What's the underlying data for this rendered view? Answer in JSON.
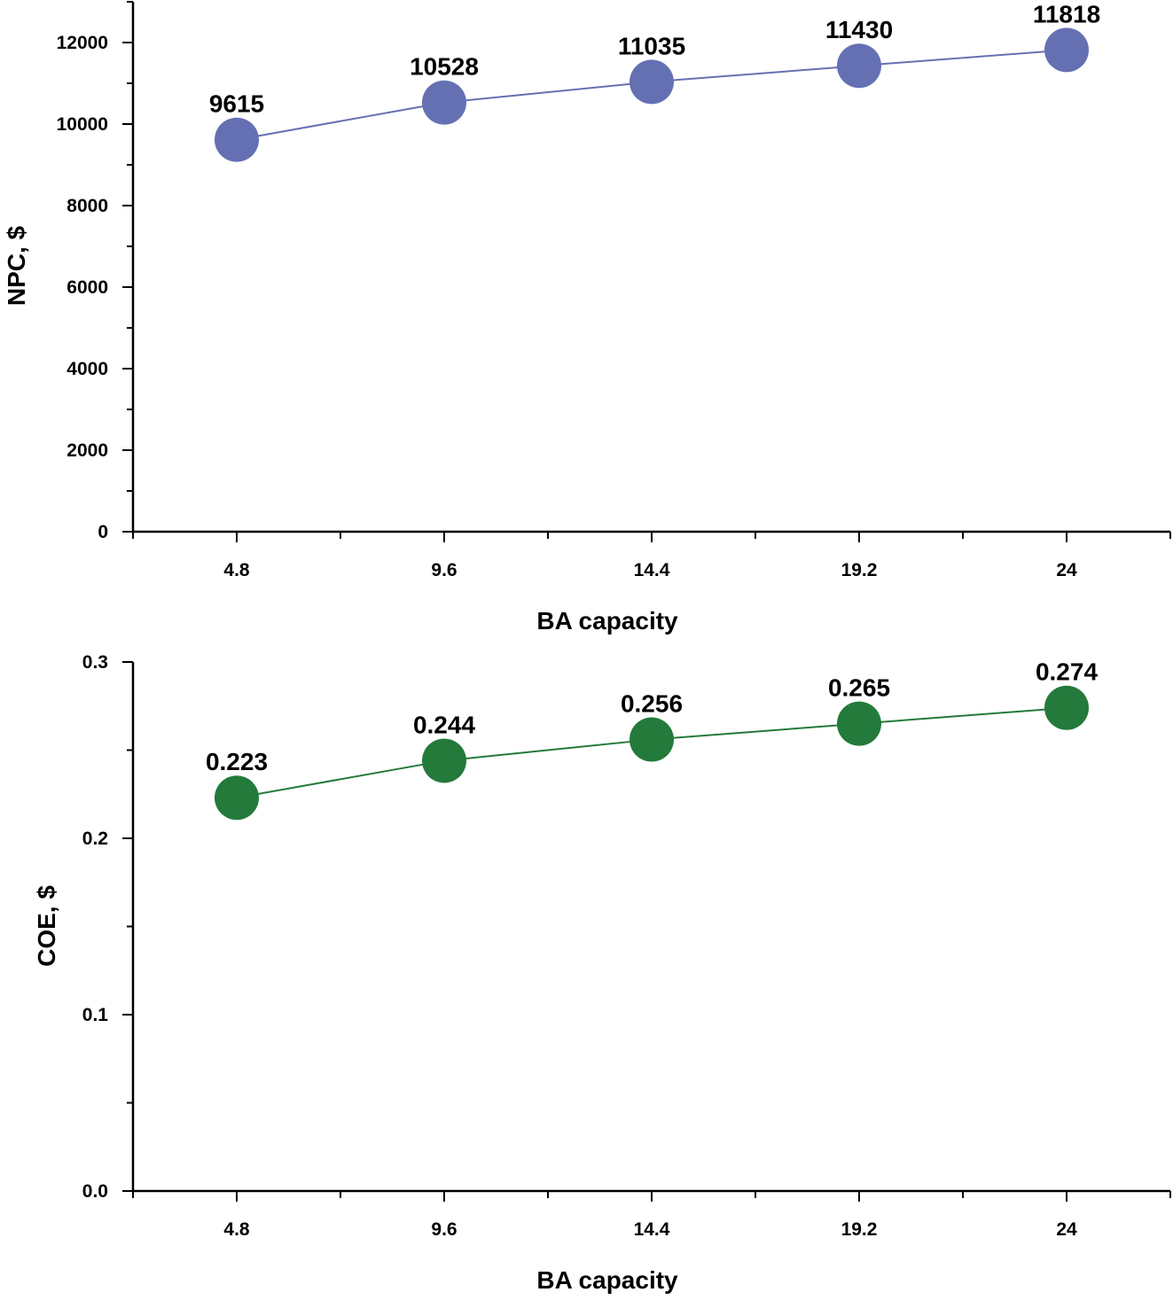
{
  "chart_data": [
    {
      "type": "line",
      "categories": [
        "4.8",
        "9.6",
        "14.4",
        "19.2",
        "24"
      ],
      "x": [
        4.8,
        9.6,
        14.4,
        19.2,
        24
      ],
      "series": [
        {
          "name": "NPC",
          "values": [
            9615,
            10528,
            11035,
            11430,
            11818
          ],
          "color": "#6570b3"
        }
      ],
      "data_labels": [
        "9615",
        "10528",
        "11035",
        "11430",
        "11818"
      ],
      "xlabel": "BA capacity",
      "ylabel": "NPC, $",
      "xlim": [
        2.4,
        26.4
      ],
      "ylim": [
        0,
        13000
      ],
      "yticks": [
        0,
        2000,
        4000,
        6000,
        8000,
        10000,
        12000
      ],
      "ytick_labels": [
        "0",
        "2000",
        "4000",
        "6000",
        "8000",
        "10000",
        "12000"
      ],
      "grid": false,
      "legend": "none"
    },
    {
      "type": "line",
      "categories": [
        "4.8",
        "9.6",
        "14.4",
        "19.2",
        "24"
      ],
      "x": [
        4.8,
        9.6,
        14.4,
        19.2,
        24
      ],
      "series": [
        {
          "name": "COE",
          "values": [
            0.223,
            0.244,
            0.256,
            0.265,
            0.274
          ],
          "color": "#237a3b"
        }
      ],
      "data_labels": [
        "0.223",
        "0.244",
        "0.256",
        "0.265",
        "0.274"
      ],
      "xlabel": "BA capacity",
      "ylabel": "COE, $",
      "xlim": [
        2.4,
        26.4
      ],
      "ylim": [
        0,
        0.3
      ],
      "yticks": [
        0,
        0.1,
        0.2,
        0.3
      ],
      "ytick_labels": [
        "0.0",
        "0.1",
        "0.2",
        "0.3"
      ],
      "grid": false,
      "legend": "none"
    }
  ]
}
